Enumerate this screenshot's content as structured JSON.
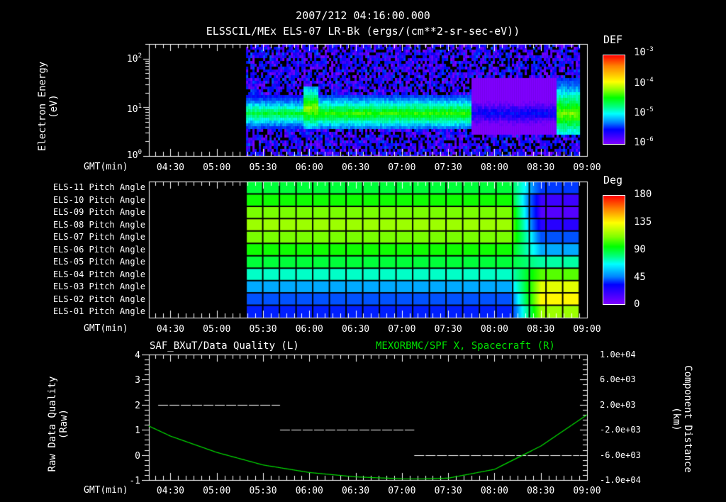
{
  "header": {
    "timestamp": "2007/212 04:16:00.000",
    "subtitle": "ELSSCIL/MEx ELS-07 LR-Bk  (ergs/(cm**2-sr-sec-eV))"
  },
  "time_axis": {
    "label": "GMT(min)",
    "ticks": [
      "04:30",
      "05:00",
      "05:30",
      "06:00",
      "06:30",
      "07:00",
      "07:30",
      "08:00",
      "08:30",
      "09:00"
    ]
  },
  "panel1": {
    "ylabel_line1": "Electron Energy",
    "ylabel_line2": "(eV)",
    "yticks": [
      {
        "base": "10",
        "exp": "2"
      },
      {
        "base": "10",
        "exp": "1"
      },
      {
        "base": "10",
        "exp": "0"
      }
    ],
    "colorbar": {
      "title": "DEF",
      "ticks": [
        {
          "base": "10",
          "exp": "-3"
        },
        {
          "base": "10",
          "exp": "-4"
        },
        {
          "base": "10",
          "exp": "-5"
        },
        {
          "base": "10",
          "exp": "-6"
        }
      ]
    }
  },
  "panel2": {
    "row_labels": [
      "ELS-11 Pitch Angle",
      "ELS-10 Pitch Angle",
      "ELS-09 Pitch Angle",
      "ELS-08 Pitch Angle",
      "ELS-07 Pitch Angle",
      "ELS-06 Pitch Angle",
      "ELS-05 Pitch Angle",
      "ELS-04 Pitch Angle",
      "ELS-03 Pitch Angle",
      "ELS-02 Pitch Angle",
      "ELS-01 Pitch Angle"
    ],
    "colorbar": {
      "title": "Deg",
      "ticks": [
        "180",
        "135",
        "90",
        "45",
        "0"
      ]
    }
  },
  "panel3": {
    "title_left": "SAF_BXuT/Data Quality (L)",
    "title_right": "MEXORBMC/SPF X, Spacecraft (R)",
    "title_right_color": "#00e000",
    "ylabel_left_line1": "Raw Data Quality",
    "ylabel_left_line2": "(Raw)",
    "yticks_left": [
      "4",
      "3",
      "2",
      "1",
      "0",
      "-1"
    ],
    "ylabel_right_line1": "Component Distance",
    "ylabel_right_line2": "(km)",
    "yticks_right": [
      "1.0e+04",
      "6.0e+03",
      "2.0e+03",
      "-2.0e+03",
      "-6.0e+03",
      "-1.0e+04"
    ]
  },
  "chart_data": [
    {
      "type": "heatmap",
      "title": "ELSSCIL/MEx ELS-07 LR-Bk (ergs/(cm**2-sr-sec-eV))",
      "xlabel": "GMT(min)",
      "ylabel": "Electron Energy (eV)",
      "yscale": "log",
      "ylim": [
        1,
        200
      ],
      "xlim": [
        "04:16",
        "09:00"
      ],
      "colorbar": {
        "label": "DEF",
        "scale": "log",
        "range": [
          1e-06,
          0.001
        ]
      },
      "data_start": "05:19",
      "features": [
        {
          "from": "05:19",
          "to": "05:55",
          "peak_energy_eV": 8,
          "band_eV": [
            4,
            20
          ],
          "level": 5e-05
        },
        {
          "from": "05:55",
          "to": "06:05",
          "peak_energy_eV": 10,
          "band_eV": [
            4,
            30
          ],
          "level": 0.00015
        },
        {
          "from": "06:05",
          "to": "07:45",
          "peak_energy_eV": 8,
          "band_eV": [
            4,
            20
          ],
          "level": 8e-05
        },
        {
          "from": "07:45",
          "to": "08:40",
          "peak_energy_eV": 8,
          "band_eV": [
            3,
            40
          ],
          "level": 3e-06
        },
        {
          "from": "08:40",
          "to": "09:00",
          "peak_energy_eV": 8,
          "band_eV": [
            3,
            40
          ],
          "level": 0.00012
        }
      ]
    },
    {
      "type": "heatmap",
      "title": "ELS Pitch Angle",
      "xlabel": "GMT(min)",
      "rows": [
        "ELS-11",
        "ELS-10",
        "ELS-09",
        "ELS-08",
        "ELS-07",
        "ELS-06",
        "ELS-05",
        "ELS-04",
        "ELS-03",
        "ELS-02",
        "ELS-01"
      ],
      "colorbar": {
        "label": "Deg",
        "range": [
          0,
          180
        ]
      },
      "data_start": "05:19",
      "data_end": "08:55",
      "steady_values_deg": [
        100,
        110,
        125,
        130,
        125,
        110,
        100,
        80,
        60,
        45,
        35
      ],
      "late_values_deg_08_30": [
        40,
        15,
        10,
        20,
        45,
        60,
        85,
        120,
        140,
        145,
        130
      ]
    },
    {
      "type": "line",
      "title": "SAF_BXuT/Data Quality (L) / MEXORBMC/SPF X, Spacecraft (R)",
      "xlabel": "GMT(min)",
      "x": [
        "04:16",
        "04:30",
        "05:00",
        "05:30",
        "06:00",
        "06:30",
        "07:00",
        "07:15",
        "07:30",
        "08:00",
        "08:30",
        "09:00"
      ],
      "series": [
        {
          "name": "Data Quality (L, Raw)",
          "axis": "left",
          "ylim": [
            -1,
            4
          ],
          "segments": [
            {
              "from": "04:22",
              "to": "05:41",
              "value": 2
            },
            {
              "from": "05:41",
              "to": "07:08",
              "value": 1
            },
            {
              "from": "07:08",
              "to": "08:55",
              "value": 0
            }
          ]
        },
        {
          "name": "SPF X, Spacecraft (R, km)",
          "axis": "right",
          "ylim": [
            -10000,
            10000
          ],
          "color": "#00e000",
          "values": [
            -1400,
            -3000,
            -5600,
            -7600,
            -8800,
            -9500,
            -9800,
            -9800,
            -9700,
            -8300,
            -4600,
            400
          ]
        }
      ]
    }
  ]
}
